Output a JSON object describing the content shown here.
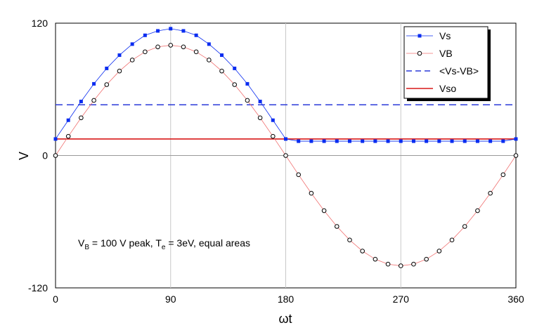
{
  "chart_data": {
    "type": "line",
    "xlabel": "ωt",
    "ylabel": "V",
    "xlim": [
      0,
      360
    ],
    "ylim": [
      -120,
      120
    ],
    "x_ticks": [
      0,
      90,
      180,
      270,
      360
    ],
    "y_ticks": [
      -120,
      0,
      120
    ],
    "grid": {
      "vertical": true,
      "horizontal_zero_line": true
    },
    "legend_placement": "top-right",
    "series": [
      {
        "name": "Vs",
        "style": "line-with-square-markers",
        "color": "#0a2cf0",
        "x": [
          0,
          10,
          20,
          30,
          40,
          50,
          60,
          70,
          80,
          90,
          100,
          110,
          120,
          130,
          140,
          150,
          160,
          170,
          180,
          190,
          200,
          210,
          220,
          230,
          240,
          250,
          260,
          270,
          280,
          290,
          300,
          310,
          320,
          330,
          340,
          350,
          360
        ],
        "y": [
          15,
          32,
          49,
          65,
          79,
          91,
          101,
          109,
          113,
          115,
          113,
          109,
          101,
          91,
          79,
          65,
          49,
          32,
          15,
          13,
          13,
          13,
          13,
          13,
          13,
          13,
          13,
          13,
          13,
          13,
          13,
          13,
          13,
          13,
          13,
          13,
          15
        ]
      },
      {
        "name": "VB",
        "style": "line-with-open-circle-markers",
        "color": "#f07070",
        "x": [
          0,
          10,
          20,
          30,
          40,
          50,
          60,
          70,
          80,
          90,
          100,
          110,
          120,
          130,
          140,
          150,
          160,
          170,
          180,
          190,
          200,
          210,
          220,
          230,
          240,
          250,
          260,
          270,
          280,
          290,
          300,
          310,
          320,
          330,
          340,
          350,
          360
        ],
        "y": [
          0,
          17.4,
          34.2,
          50,
          64.3,
          76.6,
          86.6,
          94,
          98.5,
          100,
          98.5,
          94,
          86.6,
          76.6,
          64.3,
          50,
          34.2,
          17.4,
          0,
          -17.4,
          -34.2,
          -50,
          -64.3,
          -76.6,
          -86.6,
          -94,
          -98.5,
          -100,
          -98.5,
          -94,
          -86.6,
          -76.6,
          -64.3,
          -50,
          -34.2,
          -17.4,
          0
        ]
      },
      {
        "name": "<Vs-VB>",
        "style": "dashed",
        "color": "#2a3ad8",
        "x": [
          0,
          360
        ],
        "y": [
          46,
          46
        ]
      },
      {
        "name": "Vso",
        "style": "solid",
        "color": "#d81818",
        "x": [
          0,
          360
        ],
        "y": [
          15,
          15
        ]
      }
    ],
    "annotation": {
      "pre": "V",
      "sub1": "B",
      "mid": " = 100 V peak, T",
      "sub2": "e",
      "post": " = 3eV, equal areas"
    }
  }
}
